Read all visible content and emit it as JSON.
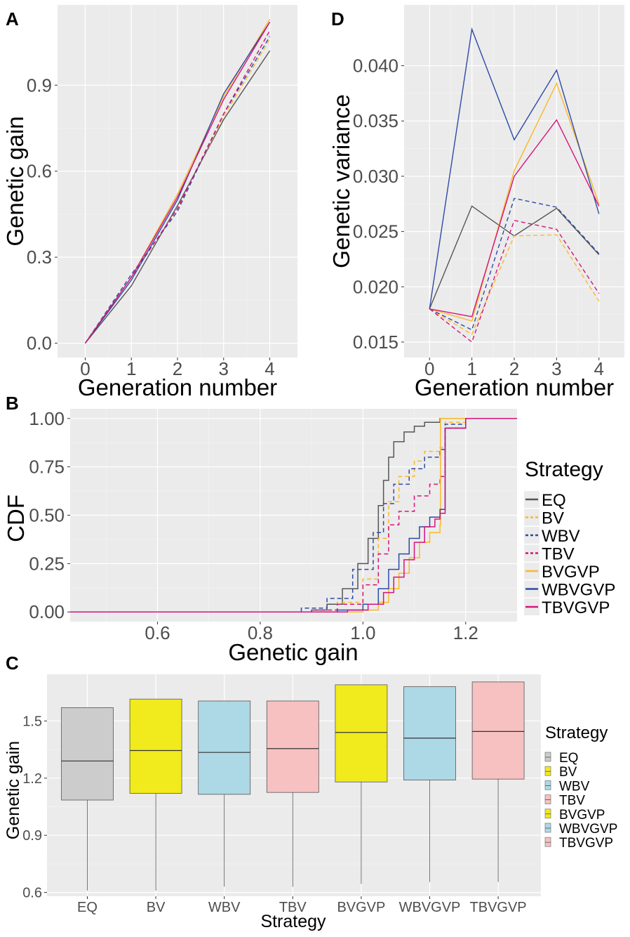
{
  "chart_data": [
    {
      "panel": "A",
      "type": "line",
      "xlabel": "Generation number",
      "ylabel": "Genetic gain",
      "x": [
        0,
        1,
        2,
        3,
        4
      ],
      "xticks": [
        "0",
        "1",
        "2",
        "3",
        "4"
      ],
      "yticks": [
        "0.0",
        "0.3",
        "0.6",
        "0.9"
      ],
      "ytick_values": [
        0.0,
        0.3,
        0.6,
        0.9
      ],
      "xlim": [
        -0.6,
        4.6
      ],
      "ylim": [
        -0.05,
        1.18
      ],
      "series": [
        {
          "name": "EQ",
          "style": "solid",
          "values": [
            0,
            0.2,
            0.48,
            0.78,
            1.02
          ]
        },
        {
          "name": "BV",
          "style": "dashed",
          "values": [
            0,
            0.23,
            0.47,
            0.79,
            1.06
          ]
        },
        {
          "name": "WBV",
          "style": "dashed",
          "values": [
            0,
            0.24,
            0.46,
            0.8,
            1.07
          ]
        },
        {
          "name": "TBV",
          "style": "dashed",
          "values": [
            0,
            0.23,
            0.47,
            0.8,
            1.09
          ]
        },
        {
          "name": "BVGVP",
          "style": "solid",
          "values": [
            0,
            0.23,
            0.52,
            0.86,
            1.13
          ]
        },
        {
          "name": "WBVGVP",
          "style": "solid",
          "values": [
            0,
            0.22,
            0.5,
            0.87,
            1.12
          ]
        },
        {
          "name": "TBVGVP",
          "style": "solid",
          "values": [
            0,
            0.23,
            0.51,
            0.85,
            1.12
          ]
        }
      ]
    },
    {
      "panel": "D",
      "type": "line",
      "xlabel": "Generation number",
      "ylabel": "Genetic variance",
      "x": [
        0,
        1,
        2,
        3,
        4
      ],
      "xticks": [
        "0",
        "1",
        "2",
        "3",
        "4"
      ],
      "yticks": [
        "0.015",
        "0.020",
        "0.025",
        "0.030",
        "0.035",
        "0.040"
      ],
      "ytick_values": [
        0.015,
        0.02,
        0.025,
        0.03,
        0.035,
        0.04
      ],
      "xlim": [
        -0.6,
        4.6
      ],
      "ylim": [
        0.0136,
        0.0455
      ],
      "series": [
        {
          "name": "EQ",
          "style": "solid",
          "values": [
            0.018,
            0.0273,
            0.0246,
            0.0271,
            0.0229
          ]
        },
        {
          "name": "BV",
          "style": "dashed",
          "values": [
            0.018,
            0.0157,
            0.0246,
            0.0247,
            0.0187
          ]
        },
        {
          "name": "WBV",
          "style": "dashed",
          "values": [
            0.018,
            0.0161,
            0.028,
            0.0272,
            0.023
          ]
        },
        {
          "name": "TBV",
          "style": "dashed",
          "values": [
            0.018,
            0.015,
            0.026,
            0.0252,
            0.0194
          ]
        },
        {
          "name": "BVGVP",
          "style": "solid",
          "values": [
            0.018,
            0.0169,
            0.0305,
            0.0384,
            0.0275
          ]
        },
        {
          "name": "WBVGVP",
          "style": "solid",
          "values": [
            0.018,
            0.0433,
            0.0333,
            0.0396,
            0.0266
          ]
        },
        {
          "name": "TBVGVP",
          "style": "solid",
          "values": [
            0.018,
            0.0173,
            0.03,
            0.0351,
            0.0273
          ]
        }
      ]
    },
    {
      "panel": "B",
      "type": "line",
      "subtype": "cdf",
      "xlabel": "Genetic gain",
      "ylabel": "CDF",
      "xticks": [
        "0.6",
        "0.8",
        "1.0",
        "1.2"
      ],
      "xtick_values": [
        0.6,
        0.8,
        1.0,
        1.2
      ],
      "yticks": [
        "0.00",
        "0.25",
        "0.50",
        "0.75",
        "1.00"
      ],
      "ytick_values": [
        0.0,
        0.25,
        0.5,
        0.75,
        1.0
      ],
      "xlim": [
        0.43,
        1.3
      ],
      "ylim": [
        -0.05,
        1.05
      ],
      "legend_title": "Strategy",
      "series": [
        {
          "name": "EQ",
          "style": "solid",
          "x": [
            0.43,
            0.85,
            0.9,
            0.93,
            0.96,
            0.99,
            1.01,
            1.03,
            1.04,
            1.05,
            1.06,
            1.08,
            1.1,
            1.12,
            1.15,
            1.3
          ],
          "y": [
            0,
            0,
            0.01,
            0.04,
            0.12,
            0.25,
            0.38,
            0.55,
            0.68,
            0.8,
            0.88,
            0.93,
            0.96,
            0.98,
            1.0,
            1.0
          ]
        },
        {
          "name": "BV",
          "style": "dashed",
          "x": [
            0.43,
            0.85,
            0.9,
            0.95,
            1.0,
            1.03,
            1.05,
            1.07,
            1.1,
            1.12,
            1.15,
            1.16,
            1.2,
            1.3
          ],
          "y": [
            0,
            0,
            0.01,
            0.05,
            0.17,
            0.38,
            0.57,
            0.7,
            0.78,
            0.83,
            0.85,
            0.98,
            1.0,
            1.0
          ]
        },
        {
          "name": "WBV",
          "style": "dashed",
          "x": [
            0.43,
            0.82,
            0.88,
            0.93,
            0.98,
            1.02,
            1.04,
            1.06,
            1.09,
            1.12,
            1.15,
            1.16,
            1.2,
            1.3
          ],
          "y": [
            0,
            0,
            0.02,
            0.07,
            0.22,
            0.41,
            0.56,
            0.66,
            0.74,
            0.8,
            0.84,
            0.97,
            1.0,
            1.0
          ]
        },
        {
          "name": "TBV",
          "style": "dashed",
          "x": [
            0.43,
            0.85,
            0.9,
            0.95,
            1.0,
            1.03,
            1.05,
            1.07,
            1.1,
            1.13,
            1.15,
            1.16,
            1.2,
            1.3
          ],
          "y": [
            0,
            0,
            0.01,
            0.04,
            0.14,
            0.3,
            0.45,
            0.52,
            0.6,
            0.66,
            0.7,
            0.95,
            1.0,
            1.0
          ]
        },
        {
          "name": "BVGVP",
          "style": "solid",
          "x": [
            0.43,
            0.95,
            1.0,
            1.03,
            1.05,
            1.07,
            1.09,
            1.11,
            1.13,
            1.15,
            1.151,
            1.18,
            1.3
          ],
          "y": [
            0,
            0,
            0.01,
            0.05,
            0.12,
            0.2,
            0.28,
            0.36,
            0.41,
            0.45,
            1.0,
            1.0,
            1.0
          ]
        },
        {
          "name": "WBVGVP",
          "style": "solid",
          "x": [
            0.43,
            0.9,
            0.95,
            1.0,
            1.03,
            1.05,
            1.07,
            1.09,
            1.11,
            1.13,
            1.15,
            1.16,
            1.2,
            1.3
          ],
          "y": [
            0,
            0,
            0.01,
            0.04,
            0.12,
            0.22,
            0.3,
            0.38,
            0.44,
            0.49,
            0.53,
            0.95,
            1.0,
            1.0
          ]
        },
        {
          "name": "TBVGVP",
          "style": "solid",
          "x": [
            0.43,
            0.92,
            0.97,
            1.01,
            1.04,
            1.06,
            1.08,
            1.1,
            1.12,
            1.14,
            1.15,
            1.16,
            1.2,
            1.3
          ],
          "y": [
            0,
            0,
            0.01,
            0.04,
            0.1,
            0.18,
            0.27,
            0.36,
            0.44,
            0.48,
            0.51,
            0.95,
            1.0,
            1.0
          ]
        }
      ]
    },
    {
      "panel": "C",
      "type": "box",
      "xlabel": "Strategy",
      "ylabel": "Genetic gain",
      "categories": [
        "EQ",
        "BV",
        "WBV",
        "TBV",
        "BVGVP",
        "WBVGVP",
        "TBVGVP"
      ],
      "yticks": [
        "0.6",
        "0.9",
        "1.2",
        "1.5"
      ],
      "ytick_values": [
        0.6,
        0.9,
        1.2,
        1.5
      ],
      "ylim": [
        0.58,
        1.745
      ],
      "legend_title": "Strategy",
      "boxes": [
        {
          "name": "EQ",
          "min": 0.61,
          "q1": 1.085,
          "median": 1.29,
          "q3": 1.57,
          "max": 1.57
        },
        {
          "name": "BV",
          "min": 0.61,
          "q1": 1.12,
          "median": 1.345,
          "q3": 1.615,
          "max": 1.615
        },
        {
          "name": "WBV",
          "min": 0.63,
          "q1": 1.115,
          "median": 1.335,
          "q3": 1.605,
          "max": 1.605
        },
        {
          "name": "TBV",
          "min": 0.63,
          "q1": 1.125,
          "median": 1.355,
          "q3": 1.605,
          "max": 1.605
        },
        {
          "name": "BVGVP",
          "min": 0.645,
          "q1": 1.18,
          "median": 1.44,
          "q3": 1.69,
          "max": 1.69
        },
        {
          "name": "WBVGVP",
          "min": 0.655,
          "q1": 1.19,
          "median": 1.41,
          "q3": 1.68,
          "max": 1.68
        },
        {
          "name": "TBVGVP",
          "min": 0.655,
          "q1": 1.195,
          "median": 1.445,
          "q3": 1.705,
          "max": 1.705
        }
      ]
    }
  ],
  "panels": {
    "A": "A",
    "B": "B",
    "C": "C",
    "D": "D"
  },
  "legend_title": "Strategy",
  "strategies": [
    "EQ",
    "BV",
    "WBV",
    "TBV",
    "BVGVP",
    "WBVGVP",
    "TBVGVP"
  ],
  "colors": {
    "EQ": "#555555",
    "BV": "#fbb829",
    "WBV": "#2d4aa8",
    "TBV": "#d4147e",
    "BVGVP": "#fbb829",
    "WBVGVP": "#2d4aa8",
    "TBVGVP": "#d4147e",
    "panel_bg": "#ebebeb",
    "grid": "#ffffff"
  },
  "box_fills": {
    "EQ": "#cccccc",
    "BV": "#f1ea1d",
    "WBV": "#add8e6",
    "TBV": "#f7c1c1",
    "BVGVP": "#f1ea1d",
    "WBVGVP": "#add8e6",
    "TBVGVP": "#f7c1c1"
  }
}
